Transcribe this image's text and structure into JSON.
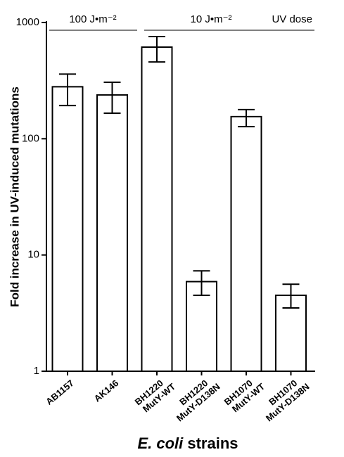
{
  "chart_data": {
    "type": "bar",
    "ylabel": "Fold increase in UV-induced mutations",
    "xlabel": {
      "italic": "E. coli",
      "text": "strains"
    },
    "annotations": [
      "100 J•m⁻²",
      "10 J•m⁻²",
      "UV dose"
    ],
    "categories": [
      [
        "AB1157"
      ],
      [
        "AK146"
      ],
      [
        "BH1220",
        "MutY-WT"
      ],
      [
        "BH1220",
        "MutY-D138N"
      ],
      [
        "BH1070",
        "MutY-WT"
      ],
      [
        "BH1070",
        "MutY-D138N"
      ]
    ],
    "values": [
      280,
      238,
      614,
      5.9,
      155,
      4.5
    ],
    "error_high": [
      360,
      306,
      757,
      7.3,
      178,
      5.6
    ],
    "error_low": [
      193,
      166,
      458,
      4.5,
      127,
      3.5
    ],
    "color": "#ffffff",
    "log_scale": true,
    "ylim": [
      1,
      1000
    ],
    "yticks": [
      1,
      10,
      100,
      1000
    ]
  }
}
